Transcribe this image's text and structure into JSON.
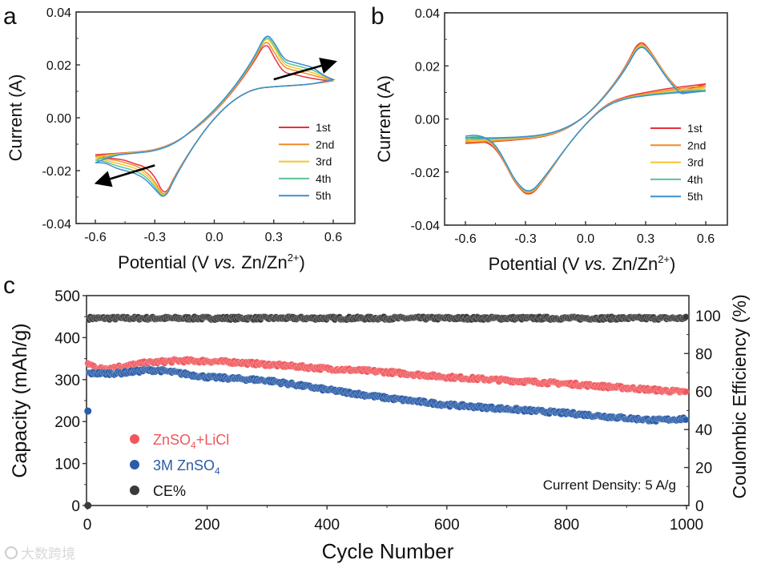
{
  "chart_data": [
    {
      "panel": "a",
      "type": "line",
      "xlabel_parts": [
        "Potential (V ",
        "vs.",
        " Zn/Zn",
        "2+",
        ")"
      ],
      "ylabel": "Current (A)",
      "xlim": [
        -0.7,
        0.7
      ],
      "ylim": [
        -0.04,
        0.04
      ],
      "xticks": [
        "-0.6",
        "-0.3",
        "0.0",
        "0.3",
        "0.6"
      ],
      "xtick_values": [
        -0.6,
        -0.3,
        0.0,
        0.3,
        0.6
      ],
      "yticks": [
        "0.04",
        "0.02",
        "0.00",
        "-0.02",
        "-0.04"
      ],
      "ytick_values": [
        0.04,
        0.02,
        0.0,
        -0.02,
        -0.04
      ],
      "legend_placement": "lower-right",
      "forward_x": [
        -0.6,
        -0.5,
        -0.4,
        -0.3,
        -0.2,
        -0.1,
        0,
        0.1,
        0.2,
        0.26,
        0.3,
        0.35,
        0.4,
        0.45,
        0.5,
        0.55,
        0.6
      ],
      "reverse_x": [
        0.6,
        0.5,
        0.4,
        0.3,
        0.2,
        0.1,
        0,
        -0.1,
        -0.2,
        -0.25,
        -0.3,
        -0.35,
        -0.4,
        -0.45,
        -0.5,
        -0.55,
        -0.6
      ],
      "series": [
        {
          "name": "1st",
          "color": "#e8303a",
          "forward": [
            -0.014,
            -0.0135,
            -0.013,
            -0.0122,
            -0.0095,
            -0.0045,
            0.002,
            0.0105,
            0.021,
            0.029,
            0.023,
            0.017,
            0.0165,
            0.0155,
            0.0148,
            0.0142,
            0.014
          ],
          "reverse": [
            0.014,
            0.0128,
            0.0122,
            0.0118,
            0.011,
            0.007,
            0.0,
            -0.01,
            -0.022,
            -0.03,
            -0.022,
            -0.0185,
            -0.0175,
            -0.016,
            -0.0155,
            -0.015,
            -0.014
          ]
        },
        {
          "name": "2nd",
          "color": "#f08a2c",
          "forward": [
            -0.0145,
            -0.0137,
            -0.0131,
            -0.0123,
            -0.0096,
            -0.0044,
            0.0022,
            0.0108,
            0.0215,
            0.03,
            0.025,
            0.019,
            0.018,
            0.017,
            0.016,
            0.015,
            0.0142
          ],
          "reverse": [
            0.0142,
            0.0128,
            0.0122,
            0.0118,
            0.011,
            0.007,
            0.0,
            -0.01,
            -0.0222,
            -0.0305,
            -0.024,
            -0.02,
            -0.018,
            -0.017,
            -0.016,
            -0.0155,
            -0.0148
          ]
        },
        {
          "name": "3rd",
          "color": "#f5c52a",
          "forward": [
            -0.015,
            -0.0138,
            -0.0132,
            -0.0124,
            -0.0097,
            -0.0043,
            0.0024,
            0.011,
            0.022,
            0.031,
            0.027,
            0.02,
            0.019,
            0.018,
            0.017,
            0.0155,
            0.0143
          ],
          "reverse": [
            0.0143,
            0.0128,
            0.0122,
            0.0118,
            0.011,
            0.007,
            0.0,
            -0.01,
            -0.0224,
            -0.0308,
            -0.025,
            -0.021,
            -0.019,
            -0.018,
            -0.017,
            -0.016,
            -0.015
          ]
        },
        {
          "name": "4th",
          "color": "#5cc494",
          "forward": [
            -0.016,
            -0.014,
            -0.0133,
            -0.0125,
            -0.0098,
            -0.0042,
            0.0026,
            0.0112,
            0.0222,
            0.0315,
            0.028,
            0.021,
            0.02,
            0.019,
            0.018,
            0.016,
            0.0144
          ],
          "reverse": [
            0.0144,
            0.0128,
            0.0122,
            0.0118,
            0.011,
            0.007,
            0.0,
            -0.01,
            -0.0226,
            -0.031,
            -0.026,
            -0.022,
            -0.02,
            -0.019,
            -0.018,
            -0.0165,
            -0.016
          ]
        },
        {
          "name": "5th",
          "color": "#3d8fd0",
          "forward": [
            -0.017,
            -0.0141,
            -0.0134,
            -0.0126,
            -0.0099,
            -0.0041,
            0.0028,
            0.0115,
            0.0225,
            0.032,
            0.029,
            0.022,
            0.021,
            0.02,
            0.019,
            0.016,
            0.0145
          ],
          "reverse": [
            0.0145,
            0.0128,
            0.0122,
            0.0118,
            0.011,
            0.007,
            0.0,
            -0.01,
            -0.0228,
            -0.031,
            -0.027,
            -0.023,
            -0.021,
            -0.02,
            -0.019,
            -0.017,
            -0.017
          ]
        }
      ],
      "arrows": [
        {
          "from": [
            0.3,
            0.0145
          ],
          "to": [
            0.6,
            0.021
          ]
        },
        {
          "from": [
            -0.3,
            -0.018
          ],
          "to": [
            -0.585,
            -0.0245
          ]
        }
      ]
    },
    {
      "panel": "b",
      "type": "line",
      "xlabel_parts": [
        "Potential (V ",
        "vs.",
        " Zn/Zn",
        "2+",
        ")"
      ],
      "ylabel": "Current (A)",
      "xlim": [
        -0.7,
        0.7
      ],
      "ylim": [
        -0.04,
        0.04
      ],
      "xticks": [
        "-0.6",
        "-0.3",
        "0.0",
        "0.3",
        "0.6"
      ],
      "xtick_values": [
        -0.6,
        -0.3,
        0.0,
        0.3,
        0.6
      ],
      "yticks": [
        "0.04",
        "0.02",
        "0.00",
        "-0.02",
        "-0.04"
      ],
      "ytick_values": [
        0.04,
        0.02,
        0.0,
        -0.02,
        -0.04
      ],
      "legend_placement": "lower-right",
      "forward_x": [
        -0.6,
        -0.5,
        -0.4,
        -0.3,
        -0.2,
        -0.1,
        0,
        0.1,
        0.2,
        0.27,
        0.33,
        0.4,
        0.47,
        0.5,
        0.55,
        0.6
      ],
      "reverse_x": [
        0.6,
        0.5,
        0.4,
        0.3,
        0.2,
        0.1,
        0,
        -0.1,
        -0.2,
        -0.28,
        -0.35,
        -0.4,
        -0.45,
        -0.5,
        -0.55,
        -0.6
      ],
      "series": [
        {
          "name": "1st",
          "color": "#e8303a",
          "forward": [
            -0.0092,
            -0.0088,
            -0.0082,
            -0.0076,
            -0.0066,
            -0.004,
            0.001,
            0.009,
            0.0195,
            0.0305,
            0.025,
            0.0165,
            0.0105,
            0.011,
            0.012,
            0.0132
          ],
          "reverse": [
            0.0132,
            0.0123,
            0.0114,
            0.01,
            0.0085,
            0.0055,
            -0.0018,
            -0.011,
            -0.0222,
            -0.0298,
            -0.0245,
            -0.017,
            -0.011,
            -0.0085,
            -0.0087,
            -0.0092
          ]
        },
        {
          "name": "2nd",
          "color": "#f08a2c",
          "forward": [
            -0.0088,
            -0.0085,
            -0.008,
            -0.0074,
            -0.0064,
            -0.0039,
            0.001,
            0.0089,
            0.0192,
            0.0298,
            0.0248,
            0.0165,
            0.01,
            0.0105,
            0.0115,
            0.0125
          ],
          "reverse": [
            0.0125,
            0.0117,
            0.0108,
            0.0095,
            0.0082,
            0.0053,
            -0.0018,
            -0.011,
            -0.022,
            -0.0294,
            -0.0242,
            -0.0168,
            -0.0105,
            -0.008,
            -0.0078,
            -0.0085
          ]
        },
        {
          "name": "3rd",
          "color": "#f5c52a",
          "forward": [
            -0.0082,
            -0.008,
            -0.0076,
            -0.0071,
            -0.0062,
            -0.0038,
            0.001,
            0.0088,
            0.019,
            0.0293,
            0.0245,
            0.0163,
            0.0098,
            0.0102,
            0.011,
            0.0118
          ],
          "reverse": [
            0.0118,
            0.0111,
            0.0103,
            0.0092,
            0.008,
            0.0052,
            -0.0018,
            -0.011,
            -0.0218,
            -0.029,
            -0.024,
            -0.0166,
            -0.01,
            -0.0075,
            -0.007,
            -0.008
          ]
        },
        {
          "name": "4th",
          "color": "#5cc494",
          "forward": [
            -0.0076,
            -0.0076,
            -0.0073,
            -0.0069,
            -0.006,
            -0.0037,
            0.001,
            0.0087,
            0.0188,
            0.0288,
            0.0242,
            0.016,
            0.0096,
            0.0099,
            0.0105,
            0.011
          ],
          "reverse": [
            0.011,
            0.0105,
            0.0099,
            0.009,
            0.0078,
            0.0051,
            -0.0018,
            -0.011,
            -0.0216,
            -0.0287,
            -0.0238,
            -0.0164,
            -0.0098,
            -0.0072,
            -0.0065,
            -0.0072
          ]
        },
        {
          "name": "5th",
          "color": "#3d8fd0",
          "forward": [
            -0.007,
            -0.0072,
            -0.007,
            -0.0067,
            -0.0058,
            -0.0036,
            0.001,
            0.0086,
            0.0186,
            0.0285,
            0.024,
            0.0158,
            0.0094,
            0.0097,
            0.0102,
            0.0105
          ],
          "reverse": [
            0.0105,
            0.0101,
            0.0096,
            0.0088,
            0.0077,
            0.005,
            -0.0018,
            -0.011,
            -0.0214,
            -0.0285,
            -0.0236,
            -0.0162,
            -0.0096,
            -0.007,
            -0.006,
            -0.0065
          ]
        }
      ]
    },
    {
      "panel": "c",
      "type": "scatter",
      "xlabel": "Cycle Number",
      "ylabel": "Capacity (mAh/g)",
      "ylabel_right": "Coulombic Efficiency (%)",
      "xlim": [
        0,
        1000
      ],
      "ylim": [
        0,
        500
      ],
      "ylim_right": [
        0,
        110.5
      ],
      "xticks": [
        "0",
        "200",
        "400",
        "600",
        "800",
        "1000"
      ],
      "xtick_values": [
        0,
        200,
        400,
        600,
        800,
        1000
      ],
      "yticks": [
        "0",
        "100",
        "200",
        "300",
        "400",
        "500"
      ],
      "ytick_values": [
        0,
        100,
        200,
        300,
        400,
        500
      ],
      "yticks_right": [
        "0",
        "20",
        "40",
        "60",
        "80",
        "100"
      ],
      "ytick_values_right": [
        0,
        20,
        40,
        60,
        80,
        100
      ],
      "annotation": "Current Density: 5 A/g",
      "legend_placement": "lower-left",
      "series": [
        {
          "name_main": "ZnSO",
          "name_sub": "4",
          "name_tail": "+LiCl",
          "color": "#f0575c",
          "axis": "left",
          "points": [
            [
              1,
              338
            ],
            [
              20,
              326
            ],
            [
              50,
              330
            ],
            [
              100,
              340
            ],
            [
              150,
              345
            ],
            [
              200,
              344
            ],
            [
              250,
              341
            ],
            [
              300,
              336
            ],
            [
              400,
              326
            ],
            [
              500,
              318
            ],
            [
              600,
              306
            ],
            [
              700,
              298
            ],
            [
              800,
              290
            ],
            [
              900,
              280
            ],
            [
              1000,
              270
            ]
          ]
        },
        {
          "name_main": "3M ZnSO",
          "name_sub": "4",
          "name_tail": "",
          "color": "#2a5ca8",
          "axis": "left",
          "first_point": [
            1,
            225
          ],
          "points": [
            [
              3,
              315
            ],
            [
              50,
              315
            ],
            [
              100,
              322
            ],
            [
              120,
              322
            ],
            [
              200,
              306
            ],
            [
              300,
              298
            ],
            [
              400,
              276
            ],
            [
              500,
              256
            ],
            [
              600,
              240
            ],
            [
              700,
              230
            ],
            [
              800,
              220
            ],
            [
              900,
              208
            ],
            [
              950,
              203
            ],
            [
              1000,
              207
            ]
          ]
        },
        {
          "name_main": "CE%",
          "name_sub": "",
          "name_tail": "",
          "color": "#3a3a3a",
          "axis": "right",
          "first_point": [
            1,
            0
          ],
          "points": [
            [
              3,
              98.6
            ],
            [
              1000,
              98.6
            ]
          ]
        }
      ]
    }
  ],
  "panel_labels": [
    "a",
    "b",
    "c"
  ],
  "watermark": "大数跨境"
}
